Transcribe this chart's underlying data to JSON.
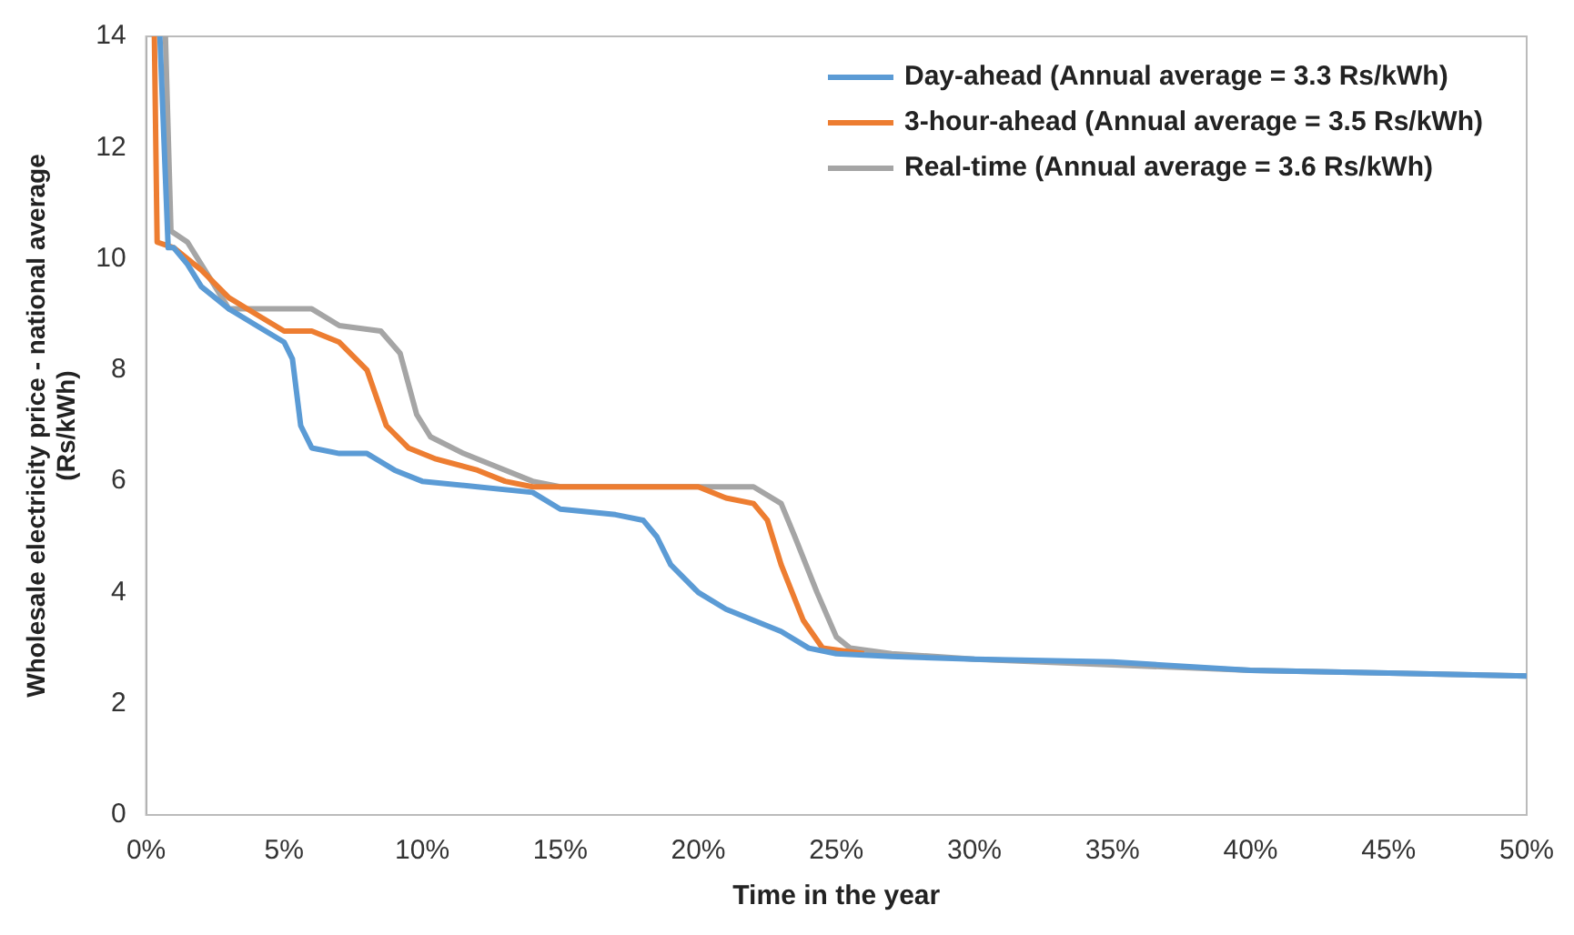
{
  "chart_data": {
    "type": "line",
    "xlabel": "Time in the year",
    "ylabel": "Wholesale electricity price - national average\n(Rs/kWh)",
    "xlim": [
      0,
      50
    ],
    "xticks": [
      {
        "value": 0,
        "label": "0%"
      },
      {
        "value": 5,
        "label": "5%"
      },
      {
        "value": 10,
        "label": "10%"
      },
      {
        "value": 15,
        "label": "15%"
      },
      {
        "value": 20,
        "label": "20%"
      },
      {
        "value": 25,
        "label": "25%"
      },
      {
        "value": 30,
        "label": "30%"
      },
      {
        "value": 35,
        "label": "35%"
      },
      {
        "value": 40,
        "label": "40%"
      },
      {
        "value": 45,
        "label": "45%"
      },
      {
        "value": 50,
        "label": "50%"
      }
    ],
    "ylim": [
      0,
      14
    ],
    "yticks": [
      0,
      2,
      4,
      6,
      8,
      10,
      12,
      14
    ],
    "grid": false,
    "legend": "top right",
    "marker": "none",
    "line_style": "solid",
    "series": [
      {
        "name": "Day-ahead (Annual average = 3.3 Rs/kWh)",
        "color": "#5b9bd5",
        "x": [
          0.5,
          0.8,
          1,
          1.5,
          2,
          3,
          4,
          5,
          5.3,
          5.6,
          6,
          7,
          8,
          9,
          10,
          12,
          14,
          15,
          17,
          18,
          18.5,
          19,
          20,
          21,
          22,
          23,
          24,
          25,
          27,
          30,
          35,
          40,
          45,
          50
        ],
        "values": [
          14,
          10.2,
          10.2,
          9.9,
          9.5,
          9.1,
          8.8,
          8.5,
          8.2,
          7,
          6.6,
          6.5,
          6.5,
          6.2,
          6,
          5.9,
          5.8,
          5.5,
          5.4,
          5.3,
          5,
          4.5,
          4,
          3.7,
          3.5,
          3.3,
          3,
          2.9,
          2.85,
          2.8,
          2.75,
          2.6,
          2.55,
          2.5
        ]
      },
      {
        "name": "3-hour-ahead (Annual average = 3.5 Rs/kWh)",
        "color": "#ed7d31",
        "x": [
          0.3,
          0.4,
          1,
          2,
          3,
          4,
          5,
          6,
          7,
          8,
          8.7,
          9.5,
          10.5,
          12,
          13,
          14,
          20,
          21,
          22,
          22.5,
          23,
          23.8,
          24.5,
          26
        ],
        "values": [
          14,
          10.3,
          10.2,
          9.8,
          9.3,
          9,
          8.7,
          8.7,
          8.5,
          8,
          7,
          6.6,
          6.4,
          6.2,
          6,
          5.9,
          5.9,
          5.7,
          5.6,
          5.3,
          4.5,
          3.5,
          3,
          2.9
        ]
      },
      {
        "name": "Real-time (Annual average = 3.6 Rs/kWh)",
        "color": "#a5a5a5",
        "x": [
          0.7,
          0.9,
          1.5,
          2.5,
          3,
          6,
          7,
          8.5,
          9.2,
          9.8,
          10.3,
          11.5,
          12.5,
          14,
          15,
          22,
          23,
          23.5,
          24.3,
          25,
          25.5,
          27,
          30,
          35,
          40,
          45,
          50
        ],
        "values": [
          14,
          10.5,
          10.3,
          9.5,
          9.1,
          9.1,
          8.8,
          8.7,
          8.3,
          7.2,
          6.8,
          6.5,
          6.3,
          6,
          5.9,
          5.9,
          5.6,
          5,
          4,
          3.2,
          3,
          2.9,
          2.8,
          2.7,
          2.6,
          2.55,
          2.5
        ]
      }
    ]
  }
}
